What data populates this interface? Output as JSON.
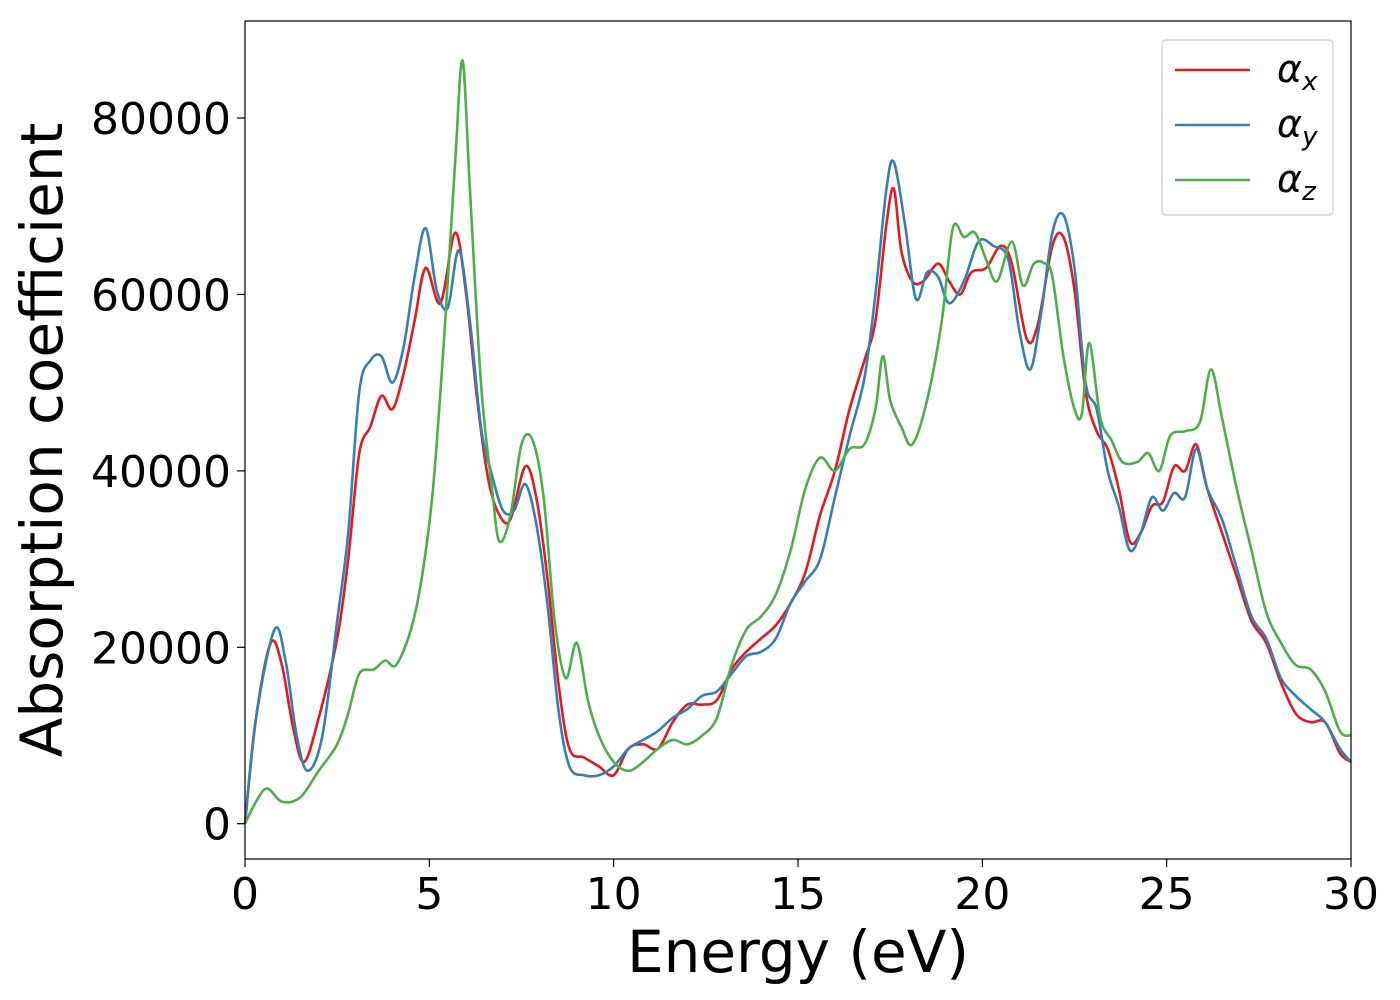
{
  "chart_data": {
    "type": "line",
    "xlabel": "Energy (eV)",
    "ylabel": "Absorption coefficient",
    "xlim": [
      0,
      30
    ],
    "ylim": [
      -4000,
      91000
    ],
    "xticks": [
      0,
      5,
      10,
      15,
      20,
      25,
      30
    ],
    "xtick_labels": [
      "0",
      "5",
      "10",
      "15",
      "20",
      "25",
      "30"
    ],
    "yticks": [
      0,
      20000,
      40000,
      60000,
      80000
    ],
    "ytick_labels": [
      "0",
      "20000",
      "40000",
      "60000",
      "80000"
    ],
    "grid": false,
    "legend_position": "top-right",
    "series": [
      {
        "name": "α",
        "subscript": "x",
        "color": "#e41a1c",
        "points": [
          [
            0,
            0
          ],
          [
            0.3,
            12000
          ],
          [
            0.7,
            20500
          ],
          [
            1.0,
            18000
          ],
          [
            1.3,
            11000
          ],
          [
            1.6,
            7000
          ],
          [
            2.0,
            12000
          ],
          [
            2.5,
            21000
          ],
          [
            2.8,
            30000
          ],
          [
            3.1,
            42000
          ],
          [
            3.4,
            45000
          ],
          [
            3.7,
            48500
          ],
          [
            4.0,
            47000
          ],
          [
            4.3,
            51000
          ],
          [
            4.6,
            57000
          ],
          [
            4.9,
            63000
          ],
          [
            5.3,
            59000
          ],
          [
            5.7,
            67000
          ],
          [
            6.0,
            60000
          ],
          [
            6.3,
            48000
          ],
          [
            6.6,
            39000
          ],
          [
            6.9,
            35000
          ],
          [
            7.2,
            34500
          ],
          [
            7.6,
            40500
          ],
          [
            7.9,
            37000
          ],
          [
            8.2,
            28000
          ],
          [
            8.5,
            16000
          ],
          [
            8.8,
            8500
          ],
          [
            9.2,
            7500
          ],
          [
            9.6,
            6500
          ],
          [
            10.0,
            5500
          ],
          [
            10.4,
            8500
          ],
          [
            10.8,
            9000
          ],
          [
            11.2,
            8500
          ],
          [
            11.6,
            11500
          ],
          [
            12.0,
            13500
          ],
          [
            12.4,
            13500
          ],
          [
            12.8,
            14000
          ],
          [
            13.2,
            17500
          ],
          [
            13.6,
            19500
          ],
          [
            14.0,
            21000
          ],
          [
            14.4,
            22500
          ],
          [
            14.8,
            25000
          ],
          [
            15.2,
            28500
          ],
          [
            15.6,
            35000
          ],
          [
            16.0,
            40000
          ],
          [
            16.4,
            47000
          ],
          [
            16.8,
            52500
          ],
          [
            17.1,
            57000
          ],
          [
            17.4,
            68000
          ],
          [
            17.6,
            72000
          ],
          [
            17.8,
            65000
          ],
          [
            18.1,
            61500
          ],
          [
            18.4,
            61500
          ],
          [
            18.8,
            63500
          ],
          [
            19.1,
            61500
          ],
          [
            19.4,
            60000
          ],
          [
            19.7,
            62500
          ],
          [
            20.1,
            63000
          ],
          [
            20.5,
            65500
          ],
          [
            20.8,
            63500
          ],
          [
            21.2,
            55000
          ],
          [
            21.5,
            56500
          ],
          [
            21.9,
            65500
          ],
          [
            22.2,
            66500
          ],
          [
            22.5,
            60500
          ],
          [
            22.8,
            49000
          ],
          [
            23.1,
            44500
          ],
          [
            23.4,
            42500
          ],
          [
            23.7,
            38000
          ],
          [
            24.0,
            32000
          ],
          [
            24.3,
            33000
          ],
          [
            24.6,
            36000
          ],
          [
            24.9,
            36500
          ],
          [
            25.2,
            40500
          ],
          [
            25.5,
            40000
          ],
          [
            25.8,
            43000
          ],
          [
            26.1,
            38000
          ],
          [
            26.5,
            33000
          ],
          [
            26.9,
            28000
          ],
          [
            27.3,
            23000
          ],
          [
            27.7,
            20500
          ],
          [
            28.1,
            16000
          ],
          [
            28.5,
            12500
          ],
          [
            28.9,
            11500
          ],
          [
            29.3,
            11500
          ],
          [
            29.7,
            8000
          ],
          [
            30,
            7000
          ]
        ]
      },
      {
        "name": "α",
        "subscript": "y",
        "color": "#377eb8",
        "points": [
          [
            0,
            0
          ],
          [
            0.3,
            12000
          ],
          [
            0.8,
            22000
          ],
          [
            1.1,
            18500
          ],
          [
            1.4,
            10000
          ],
          [
            1.7,
            6000
          ],
          [
            2.1,
            10000
          ],
          [
            2.5,
            23000
          ],
          [
            2.8,
            33000
          ],
          [
            3.1,
            49000
          ],
          [
            3.4,
            52500
          ],
          [
            3.7,
            53000
          ],
          [
            4.0,
            50000
          ],
          [
            4.3,
            54000
          ],
          [
            4.6,
            62000
          ],
          [
            4.9,
            67500
          ],
          [
            5.2,
            60500
          ],
          [
            5.5,
            58500
          ],
          [
            5.8,
            65000
          ],
          [
            6.1,
            57000
          ],
          [
            6.4,
            45000
          ],
          [
            6.7,
            39500
          ],
          [
            7.0,
            35500
          ],
          [
            7.3,
            35500
          ],
          [
            7.6,
            38500
          ],
          [
            7.9,
            34000
          ],
          [
            8.2,
            25000
          ],
          [
            8.5,
            13000
          ],
          [
            8.8,
            6500
          ],
          [
            9.2,
            5500
          ],
          [
            9.6,
            5500
          ],
          [
            10.0,
            6500
          ],
          [
            10.4,
            8500
          ],
          [
            10.8,
            9500
          ],
          [
            11.2,
            10500
          ],
          [
            11.6,
            12000
          ],
          [
            12.0,
            13000
          ],
          [
            12.4,
            14500
          ],
          [
            12.8,
            15000
          ],
          [
            13.2,
            17000
          ],
          [
            13.6,
            19000
          ],
          [
            14.0,
            19500
          ],
          [
            14.4,
            21000
          ],
          [
            14.8,
            25000
          ],
          [
            15.2,
            27500
          ],
          [
            15.6,
            30000
          ],
          [
            16.0,
            37000
          ],
          [
            16.4,
            44000
          ],
          [
            16.8,
            50500
          ],
          [
            17.1,
            60000
          ],
          [
            17.4,
            72000
          ],
          [
            17.6,
            75000
          ],
          [
            17.9,
            68000
          ],
          [
            18.2,
            59500
          ],
          [
            18.5,
            62500
          ],
          [
            18.8,
            62000
          ],
          [
            19.1,
            59000
          ],
          [
            19.5,
            61500
          ],
          [
            19.9,
            66000
          ],
          [
            20.3,
            65500
          ],
          [
            20.7,
            64000
          ],
          [
            21.0,
            56000
          ],
          [
            21.3,
            51500
          ],
          [
            21.6,
            58000
          ],
          [
            21.9,
            67000
          ],
          [
            22.2,
            69000
          ],
          [
            22.5,
            63000
          ],
          [
            22.8,
            50000
          ],
          [
            23.1,
            47000
          ],
          [
            23.4,
            40000
          ],
          [
            23.7,
            36000
          ],
          [
            24.0,
            31000
          ],
          [
            24.3,
            33000
          ],
          [
            24.6,
            37000
          ],
          [
            24.9,
            35500
          ],
          [
            25.2,
            37500
          ],
          [
            25.5,
            37000
          ],
          [
            25.8,
            42500
          ],
          [
            26.1,
            38000
          ],
          [
            26.5,
            34500
          ],
          [
            26.9,
            29000
          ],
          [
            27.3,
            23500
          ],
          [
            27.7,
            21000
          ],
          [
            28.1,
            16500
          ],
          [
            28.5,
            14500
          ],
          [
            28.9,
            13000
          ],
          [
            29.3,
            11500
          ],
          [
            29.7,
            8500
          ],
          [
            30,
            7000
          ]
        ]
      },
      {
        "name": "α",
        "subscript": "z",
        "color": "#4daf4a",
        "points": [
          [
            0,
            0
          ],
          [
            0.3,
            2500
          ],
          [
            0.6,
            4000
          ],
          [
            1.0,
            2500
          ],
          [
            1.5,
            3000
          ],
          [
            2.0,
            6000
          ],
          [
            2.5,
            9000
          ],
          [
            2.8,
            12500
          ],
          [
            3.1,
            17000
          ],
          [
            3.5,
            17500
          ],
          [
            3.8,
            18500
          ],
          [
            4.1,
            18000
          ],
          [
            4.5,
            22000
          ],
          [
            4.8,
            28000
          ],
          [
            5.1,
            38000
          ],
          [
            5.4,
            55000
          ],
          [
            5.7,
            75000
          ],
          [
            5.9,
            86500
          ],
          [
            6.1,
            72000
          ],
          [
            6.4,
            50000
          ],
          [
            6.7,
            38000
          ],
          [
            6.9,
            32000
          ],
          [
            7.2,
            35000
          ],
          [
            7.5,
            43000
          ],
          [
            7.8,
            43500
          ],
          [
            8.1,
            37000
          ],
          [
            8.4,
            23000
          ],
          [
            8.7,
            16500
          ],
          [
            9.0,
            20500
          ],
          [
            9.3,
            14000
          ],
          [
            9.6,
            10000
          ],
          [
            10.0,
            7000
          ],
          [
            10.4,
            6000
          ],
          [
            10.8,
            7000
          ],
          [
            11.2,
            8500
          ],
          [
            11.6,
            9500
          ],
          [
            12.0,
            9000
          ],
          [
            12.4,
            10000
          ],
          [
            12.8,
            12000
          ],
          [
            13.2,
            18000
          ],
          [
            13.6,
            22000
          ],
          [
            14.0,
            23500
          ],
          [
            14.4,
            26000
          ],
          [
            14.8,
            31000
          ],
          [
            15.2,
            38000
          ],
          [
            15.6,
            41500
          ],
          [
            16.0,
            40000
          ],
          [
            16.4,
            42500
          ],
          [
            16.8,
            43000
          ],
          [
            17.1,
            47000
          ],
          [
            17.3,
            53000
          ],
          [
            17.5,
            48000
          ],
          [
            17.8,
            45000
          ],
          [
            18.1,
            43000
          ],
          [
            18.5,
            48000
          ],
          [
            18.9,
            57000
          ],
          [
            19.2,
            67500
          ],
          [
            19.5,
            66500
          ],
          [
            19.8,
            67000
          ],
          [
            20.1,
            64000
          ],
          [
            20.4,
            61500
          ],
          [
            20.8,
            66000
          ],
          [
            21.1,
            61000
          ],
          [
            21.4,
            63500
          ],
          [
            21.7,
            63500
          ],
          [
            21.9,
            62000
          ],
          [
            22.2,
            53000
          ],
          [
            22.5,
            47000
          ],
          [
            22.7,
            46500
          ],
          [
            22.9,
            54500
          ],
          [
            23.2,
            46000
          ],
          [
            23.5,
            43500
          ],
          [
            23.8,
            41000
          ],
          [
            24.2,
            41000
          ],
          [
            24.5,
            42000
          ],
          [
            24.8,
            40000
          ],
          [
            25.1,
            44000
          ],
          [
            25.5,
            44500
          ],
          [
            25.9,
            45500
          ],
          [
            26.2,
            51500
          ],
          [
            26.5,
            46000
          ],
          [
            26.9,
            38000
          ],
          [
            27.3,
            31000
          ],
          [
            27.7,
            24000
          ],
          [
            28.1,
            20500
          ],
          [
            28.5,
            18000
          ],
          [
            28.9,
            17500
          ],
          [
            29.3,
            15000
          ],
          [
            29.7,
            10500
          ],
          [
            30,
            10000
          ]
        ]
      }
    ]
  }
}
